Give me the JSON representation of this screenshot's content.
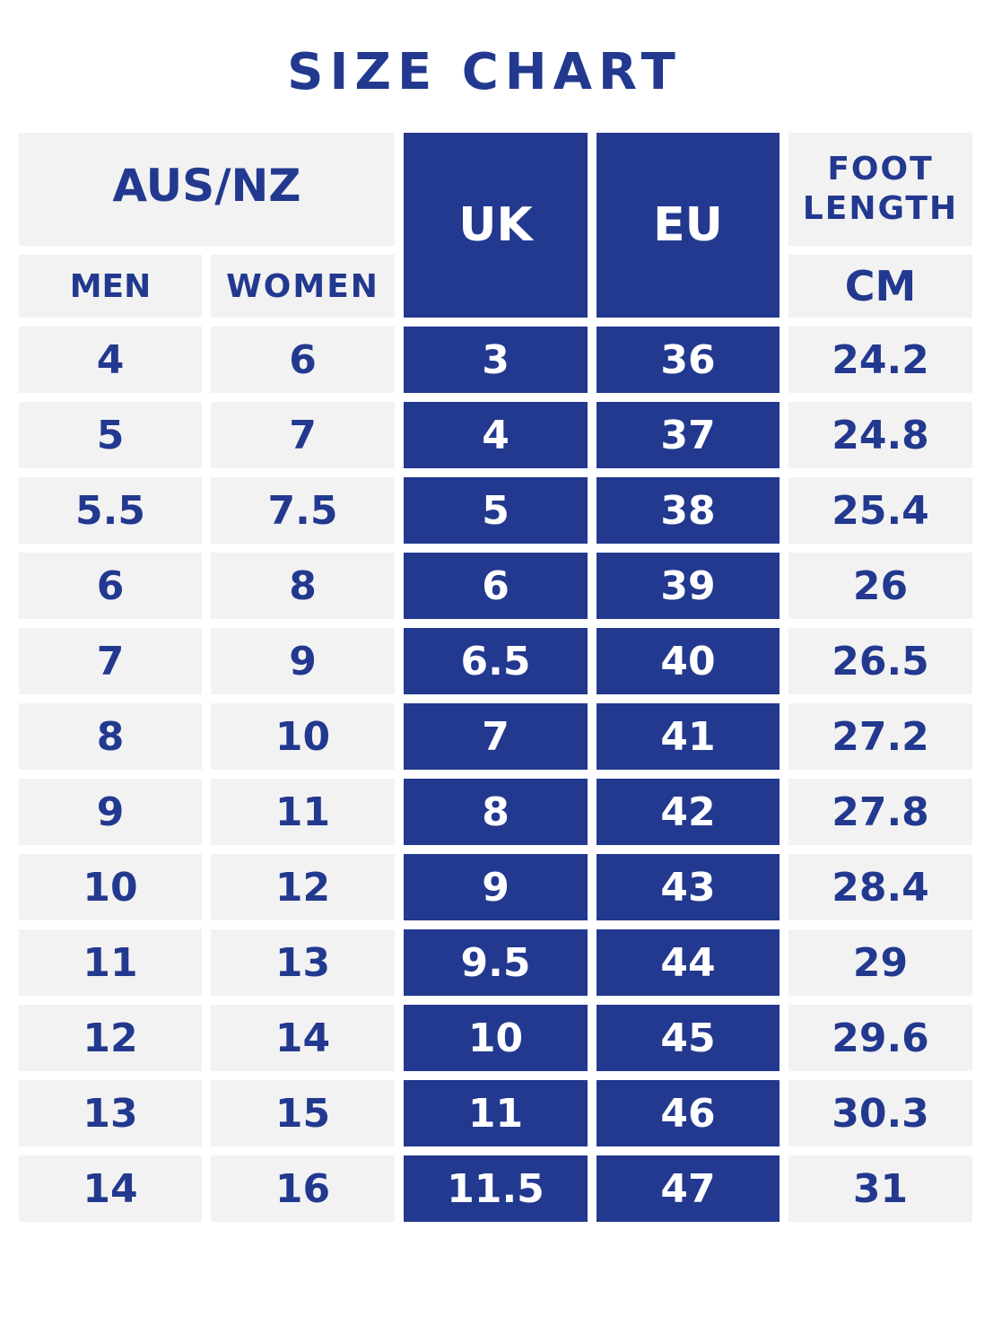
{
  "title": "SIZE CHART",
  "headers": {
    "aus_nz": "AUS/NZ",
    "uk": "UK",
    "eu": "EU",
    "foot_line1": "FOOT",
    "foot_line2": "LENGTH",
    "men": "MEN",
    "women": "WOMEN",
    "cm": "CM"
  },
  "colors": {
    "text": "#22398f",
    "dark_band": "#22398f",
    "cell": "#f2f2f2"
  },
  "rows": [
    {
      "men": "4",
      "women": "6",
      "uk": "3",
      "eu": "36",
      "cm": "24.2"
    },
    {
      "men": "5",
      "women": "7",
      "uk": "4",
      "eu": "37",
      "cm": "24.8"
    },
    {
      "men": "5.5",
      "women": "7.5",
      "uk": "5",
      "eu": "38",
      "cm": "25.4"
    },
    {
      "men": "6",
      "women": "8",
      "uk": "6",
      "eu": "39",
      "cm": "26"
    },
    {
      "men": "7",
      "women": "9",
      "uk": "6.5",
      "eu": "40",
      "cm": "26.5"
    },
    {
      "men": "8",
      "women": "10",
      "uk": "7",
      "eu": "41",
      "cm": "27.2"
    },
    {
      "men": "9",
      "women": "11",
      "uk": "8",
      "eu": "42",
      "cm": "27.8"
    },
    {
      "men": "10",
      "women": "12",
      "uk": "9",
      "eu": "43",
      "cm": "28.4"
    },
    {
      "men": "11",
      "women": "13",
      "uk": "9.5",
      "eu": "44",
      "cm": "29"
    },
    {
      "men": "12",
      "women": "14",
      "uk": "10",
      "eu": "45",
      "cm": "29.6"
    },
    {
      "men": "13",
      "women": "15",
      "uk": "11",
      "eu": "46",
      "cm": "30.3"
    },
    {
      "men": "14",
      "women": "16",
      "uk": "11.5",
      "eu": "47",
      "cm": "31"
    }
  ]
}
